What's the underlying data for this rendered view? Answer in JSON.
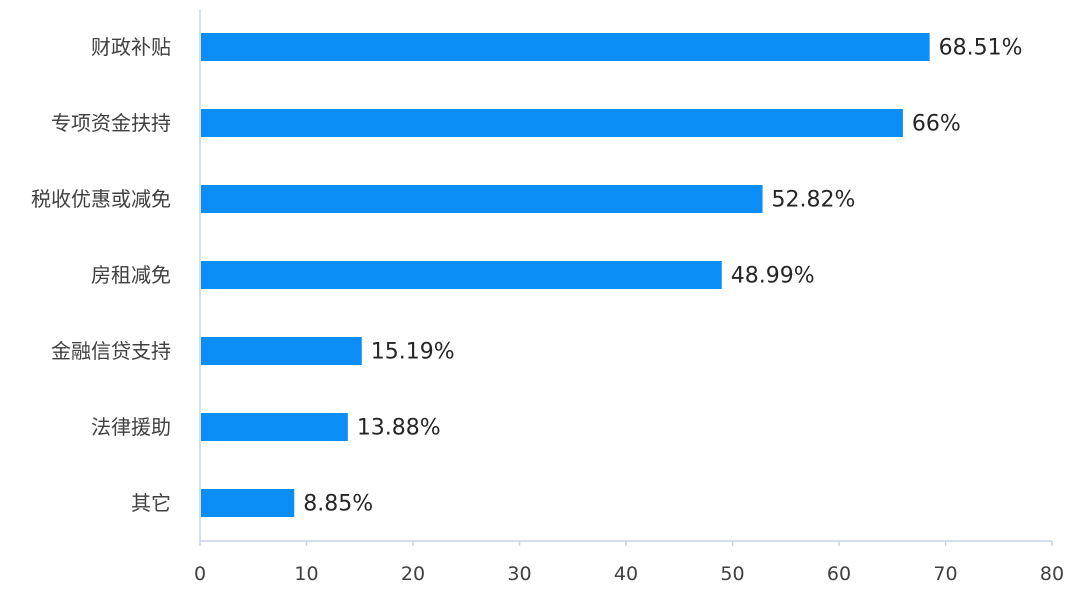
{
  "chart_data": {
    "type": "bar",
    "orientation": "horizontal",
    "title": "",
    "xlabel": "",
    "ylabel": "",
    "categories": [
      "财政补贴",
      "专项资金扶持",
      "税收优惠或减免",
      "房租减免",
      "金融信贷支持",
      "法律援助",
      "其它"
    ],
    "values": [
      68.51,
      66,
      52.82,
      48.99,
      15.19,
      13.88,
      8.85
    ],
    "value_labels": [
      "68.51%",
      "66%",
      "52.82%",
      "48.99%",
      "15.19%",
      "13.88%",
      "8.85%"
    ],
    "xlim": [
      0,
      80
    ],
    "xticks": [
      0,
      10,
      20,
      30,
      40,
      50,
      60,
      70,
      80
    ],
    "xtick_labels": [
      "0",
      "10",
      "20",
      "30",
      "40",
      "50",
      "60",
      "70",
      "80"
    ],
    "grid": false,
    "legend": "none",
    "bar_color": "#0a8ef5"
  }
}
